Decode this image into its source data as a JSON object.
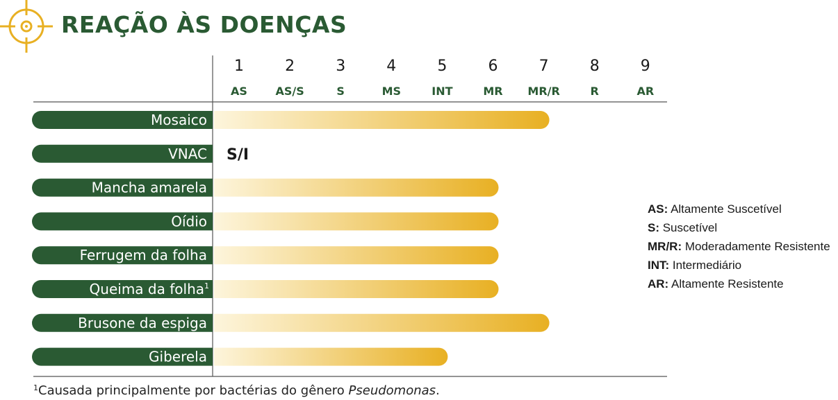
{
  "title": "REAÇÃO ÀS DOENÇAS",
  "chart_data": {
    "type": "bar",
    "scale": [
      {
        "value": "1",
        "code": "AS"
      },
      {
        "value": "2",
        "code": "AS/S"
      },
      {
        "value": "3",
        "code": "S"
      },
      {
        "value": "4",
        "code": "MS"
      },
      {
        "value": "5",
        "code": "INT"
      },
      {
        "value": "6",
        "code": "MR"
      },
      {
        "value": "7",
        "code": "MR/R"
      },
      {
        "value": "8",
        "code": "R"
      },
      {
        "value": "9",
        "code": "AR"
      }
    ],
    "categories": [
      "Mosaico",
      "VNAC",
      "Mancha amarela",
      "Oídio",
      "Ferrugem da folha",
      "Queima da folha",
      "Brusone da espiga",
      "Giberela"
    ],
    "category_superscripts": [
      "",
      "",
      "",
      "",
      "",
      "1",
      "",
      ""
    ],
    "values": [
      7,
      null,
      6,
      6,
      6,
      6,
      7,
      5
    ],
    "value_labels": [
      "",
      "S/I",
      "",
      "",
      "",
      "",
      "",
      ""
    ],
    "xlim": [
      0.5,
      9.5
    ],
    "grid": false,
    "colors": {
      "label_bg": "#2a5a33",
      "bar_start": "#fdf5dc",
      "bar_end": "#e8b023",
      "axis_text": "#1a1a1a",
      "code_text": "#2a5a33"
    }
  },
  "legend": {
    "entries": [
      {
        "key": "AS:",
        "text": "Altamente Suscetível"
      },
      {
        "key": "S:",
        "text": "Suscetível"
      },
      {
        "key": "MR/R:",
        "text": "Moderadamente Resistente"
      },
      {
        "key": "INT:",
        "text": "Intermediário"
      },
      {
        "key": "AR:",
        "text": "Altamente Resistente"
      }
    ]
  },
  "footnote": {
    "marker": "1",
    "text": "Causada principalmente por bactérias do gênero ",
    "italic": "Pseudomonas",
    "end": "."
  },
  "icons": {
    "logo": "crosshair-target-icon"
  }
}
